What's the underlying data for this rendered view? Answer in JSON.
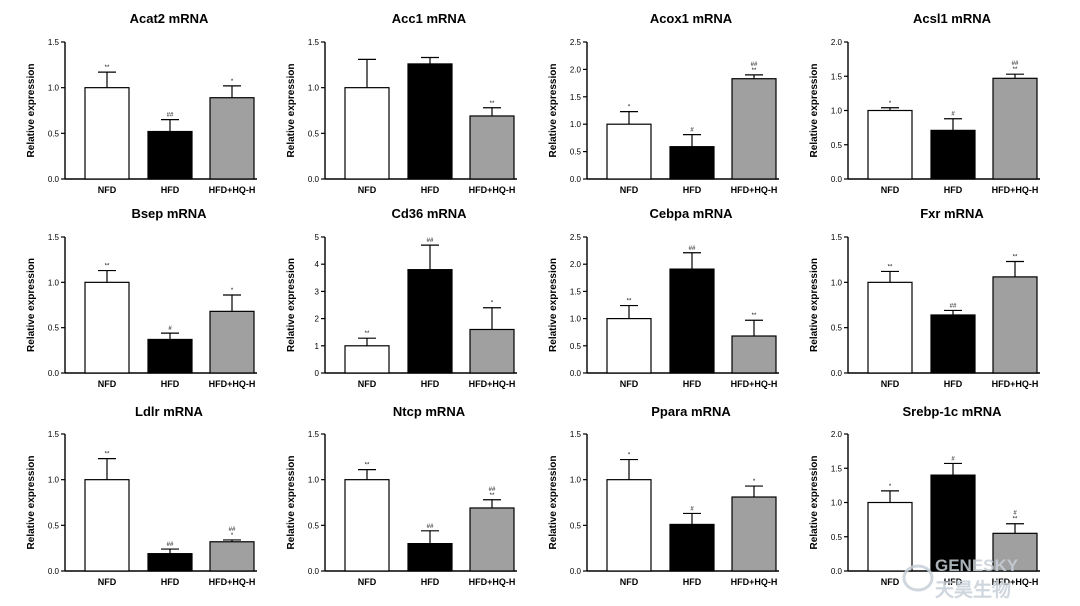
{
  "colors": {
    "NFD": "#ffffff",
    "HFD": "#000000",
    "HFD+HQ-H": "#a0a0a0",
    "axis": "#000000"
  },
  "watermark": {
    "text_en": "GENESKY",
    "text_cn": "天昊生物"
  },
  "chart_data": [
    {
      "type": "bar",
      "title": "Acat2 mRNA",
      "ylabel": "Relative expression",
      "categories": [
        "NFD",
        "HFD",
        "HFD+HQ-H"
      ],
      "values": [
        1.0,
        0.52,
        0.89
      ],
      "errors": [
        0.17,
        0.13,
        0.13
      ],
      "significance": [
        "**",
        "##",
        "*"
      ],
      "ylim": [
        0,
        1.5
      ],
      "yticks": [
        "0.0",
        "0.5",
        "1.0",
        "1.5"
      ]
    },
    {
      "type": "bar",
      "title": "Acc1 mRNA",
      "ylabel": "Relative expression",
      "categories": [
        "NFD",
        "HFD",
        "HFD+HQ-H"
      ],
      "values": [
        1.0,
        1.26,
        0.69
      ],
      "errors": [
        0.31,
        0.07,
        0.09
      ],
      "significance": [
        "",
        "",
        "**"
      ],
      "ylim": [
        0,
        1.5
      ],
      "yticks": [
        "0.0",
        "0.5",
        "1.0",
        "1.5"
      ]
    },
    {
      "type": "bar",
      "title": "Acox1 mRNA",
      "ylabel": "Relative expression",
      "categories": [
        "NFD",
        "HFD",
        "HFD+HQ-H"
      ],
      "values": [
        1.0,
        0.59,
        1.83
      ],
      "errors": [
        0.23,
        0.22,
        0.07
      ],
      "significance": [
        "*",
        "#",
        "##\n**"
      ],
      "ylim": [
        0,
        2.5
      ],
      "yticks": [
        "0.0",
        "0.5",
        "1.0",
        "1.5",
        "2.0",
        "2.5"
      ]
    },
    {
      "type": "bar",
      "title": "Acsl1 mRNA",
      "ylabel": "Relative expression",
      "categories": [
        "NFD",
        "HFD",
        "HFD+HQ-H"
      ],
      "values": [
        1.0,
        0.71,
        1.47
      ],
      "errors": [
        0.04,
        0.17,
        0.06
      ],
      "significance": [
        "*",
        "#",
        "##\n**"
      ],
      "ylim": [
        0,
        2.0
      ],
      "yticks": [
        "0.0",
        "0.5",
        "1.0",
        "1.5",
        "2.0"
      ]
    },
    {
      "type": "bar",
      "title": "Bsep mRNA",
      "ylabel": "Relative expression",
      "categories": [
        "NFD",
        "HFD",
        "HFD+HQ-H"
      ],
      "values": [
        1.0,
        0.37,
        0.68
      ],
      "errors": [
        0.13,
        0.07,
        0.18
      ],
      "significance": [
        "**",
        "#",
        "*"
      ],
      "ylim": [
        0,
        1.5
      ],
      "yticks": [
        "0.0",
        "0.5",
        "1.0",
        "1.5"
      ]
    },
    {
      "type": "bar",
      "title": "Cd36 mRNA",
      "ylabel": "Relative expression",
      "categories": [
        "NFD",
        "HFD",
        "HFD+HQ-H"
      ],
      "values": [
        1.0,
        3.8,
        1.6
      ],
      "errors": [
        0.28,
        0.9,
        0.8
      ],
      "significance": [
        "**",
        "##",
        "*"
      ],
      "ylim": [
        0,
        5
      ],
      "yticks": [
        "0",
        "1",
        "2",
        "3",
        "4",
        "5"
      ]
    },
    {
      "type": "bar",
      "title": "Cebpa mRNA",
      "ylabel": "Relative expression",
      "categories": [
        "NFD",
        "HFD",
        "HFD+HQ-H"
      ],
      "values": [
        1.0,
        1.91,
        0.68
      ],
      "errors": [
        0.24,
        0.3,
        0.29
      ],
      "significance": [
        "**",
        "##",
        "**"
      ],
      "ylim": [
        0,
        2.5
      ],
      "yticks": [
        "0.0",
        "0.5",
        "1.0",
        "1.5",
        "2.0",
        "2.5"
      ]
    },
    {
      "type": "bar",
      "title": "Fxr mRNA",
      "ylabel": "Relative expression",
      "categories": [
        "NFD",
        "HFD",
        "HFD+HQ-H"
      ],
      "values": [
        1.0,
        0.64,
        1.06
      ],
      "errors": [
        0.12,
        0.05,
        0.17
      ],
      "significance": [
        "**",
        "##",
        "**"
      ],
      "ylim": [
        0,
        1.5
      ],
      "yticks": [
        "0.0",
        "0.5",
        "1.0",
        "1.5"
      ]
    },
    {
      "type": "bar",
      "title": "Ldlr mRNA",
      "ylabel": "Relative expression",
      "categories": [
        "NFD",
        "HFD",
        "HFD+HQ-H"
      ],
      "values": [
        1.0,
        0.19,
        0.32
      ],
      "errors": [
        0.23,
        0.05,
        0.02
      ],
      "significance": [
        "**",
        "##",
        "##\n*"
      ],
      "ylim": [
        0,
        1.5
      ],
      "yticks": [
        "0.0",
        "0.5",
        "1.0",
        "1.5"
      ]
    },
    {
      "type": "bar",
      "title": "Ntcp mRNA",
      "ylabel": "Relative expression",
      "categories": [
        "NFD",
        "HFD",
        "HFD+HQ-H"
      ],
      "values": [
        1.0,
        0.3,
        0.69
      ],
      "errors": [
        0.11,
        0.14,
        0.09
      ],
      "significance": [
        "**",
        "##",
        "##\n**"
      ],
      "ylim": [
        0,
        1.5
      ],
      "yticks": [
        "0.0",
        "0.5",
        "1.0",
        "1.5"
      ]
    },
    {
      "type": "bar",
      "title": "Ppara mRNA",
      "ylabel": "Relative expression",
      "categories": [
        "NFD",
        "HFD",
        "HFD+HQ-H"
      ],
      "values": [
        1.0,
        0.51,
        0.81
      ],
      "errors": [
        0.22,
        0.12,
        0.12
      ],
      "significance": [
        "*",
        "#",
        "*"
      ],
      "ylim": [
        0,
        1.5
      ],
      "yticks": [
        "0.0",
        "0.5",
        "1.0",
        "1.5"
      ]
    },
    {
      "type": "bar",
      "title": "Srebp-1c mRNA",
      "ylabel": "Relative expression",
      "categories": [
        "NFD",
        "HFD",
        "HFD+HQ-H"
      ],
      "values": [
        1.0,
        1.4,
        0.55
      ],
      "errors": [
        0.17,
        0.17,
        0.14
      ],
      "significance": [
        "*",
        "#",
        "#\n**"
      ],
      "ylim": [
        0,
        2.0
      ],
      "yticks": [
        "0.0",
        "0.5",
        "1.0",
        "1.5",
        "2.0"
      ]
    }
  ]
}
